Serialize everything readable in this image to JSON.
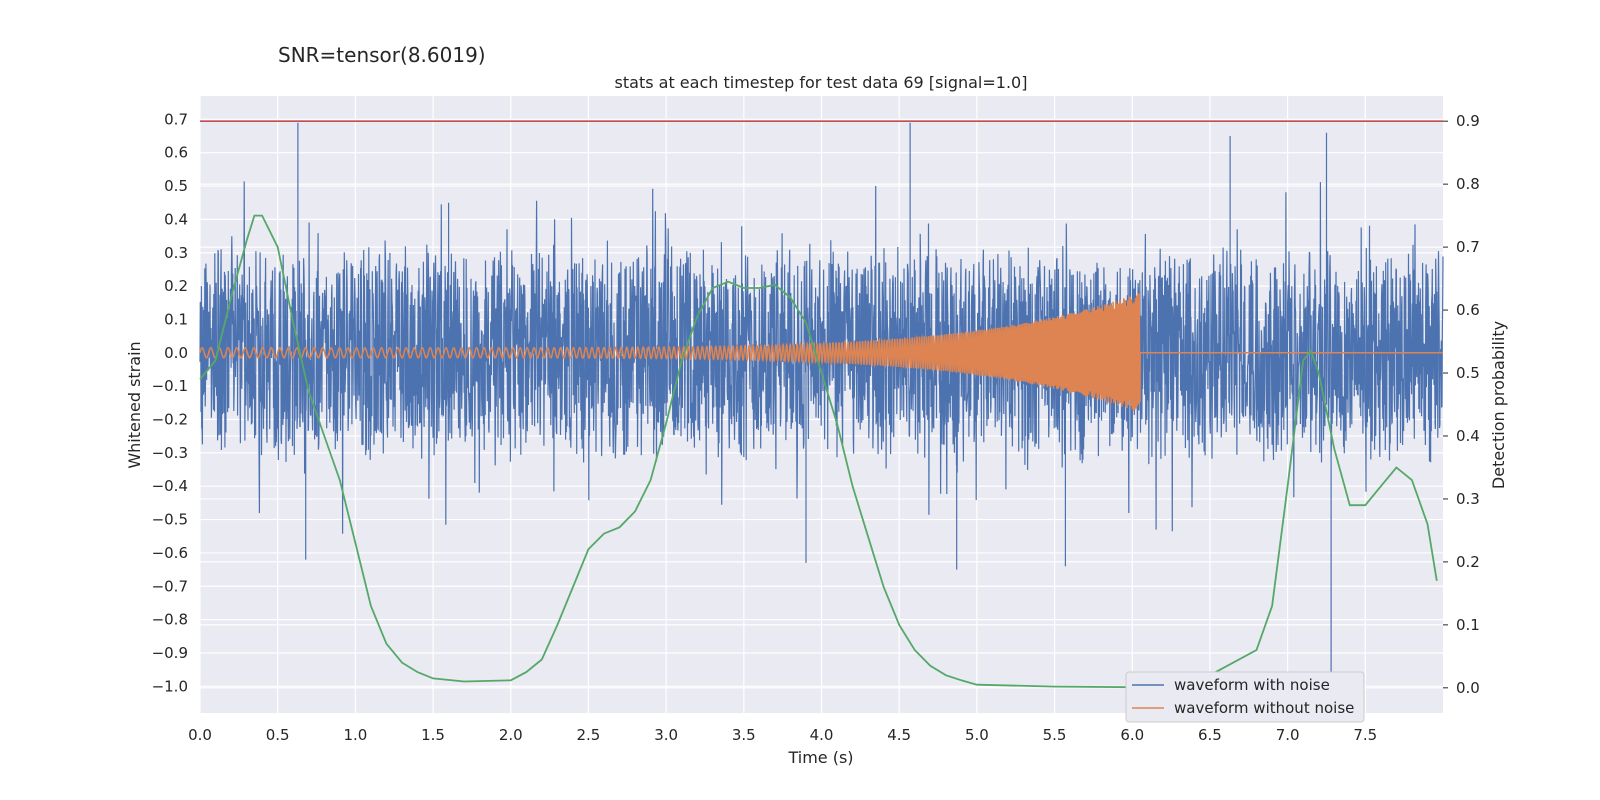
{
  "suptitle": "SNR=tensor(8.6019)",
  "chart_data": {
    "type": "line",
    "title": "stats at each timestep for test data 69 [signal=1.0]",
    "xlabel": "Time (s)",
    "ylabel_left": "Whitened strain",
    "ylabel_right": "Detection probability",
    "xlim": [
      0.0,
      8.0
    ],
    "ylim_left": [
      -1.08,
      0.77
    ],
    "ylim_right": [
      -0.04,
      0.94
    ],
    "x_ticks": [
      "0.0",
      "0.5",
      "1.0",
      "1.5",
      "2.0",
      "2.5",
      "3.0",
      "3.5",
      "4.0",
      "4.5",
      "5.0",
      "5.5",
      "6.0",
      "6.5",
      "7.0",
      "7.5"
    ],
    "y_ticks_left": [
      "0.7",
      "0.6",
      "0.5",
      "0.4",
      "0.3",
      "0.2",
      "0.1",
      "0.0",
      "−0.1",
      "−0.2",
      "−0.3",
      "−0.4",
      "−0.5",
      "−0.6",
      "−0.7",
      "−0.8",
      "−0.9",
      "−1.0"
    ],
    "y_ticks_right": [
      "0.9",
      "0.8",
      "0.7",
      "0.6",
      "0.5",
      "0.4",
      "0.3",
      "0.2",
      "0.1",
      "0.0"
    ],
    "grid": true,
    "legend_position": "bottom-right",
    "threshold_line": {
      "value_right_axis": 0.9,
      "color": "#c44e52"
    },
    "series": [
      {
        "name": "waveform with noise",
        "color": "#4c72b0",
        "axis": "left",
        "description_envelope": {
          "typical_min": -0.3,
          "typical_max": 0.3
        },
        "peaks": [
          [
            0.63,
            0.69
          ],
          [
            4.57,
            0.69
          ],
          [
            7.28,
            -1.0
          ],
          [
            0.68,
            -0.62
          ],
          [
            3.9,
            -0.63
          ],
          [
            4.87,
            -0.65
          ],
          [
            5.57,
            -0.64
          ],
          [
            7.25,
            0.66
          ],
          [
            1.6,
            0.45
          ],
          [
            6.63,
            0.65
          ]
        ]
      },
      {
        "name": "waveform without noise",
        "color": "#dd8452",
        "axis": "left",
        "chirp": {
          "start": 0.0,
          "merger": 6.05,
          "end": 8.0,
          "amp_start": 0.015,
          "amp_peak": 0.18
        }
      },
      {
        "name": "detection probability",
        "color": "#55a868",
        "axis": "right",
        "x": [
          0.0,
          0.1,
          0.2,
          0.3,
          0.35,
          0.4,
          0.5,
          0.6,
          0.7,
          0.8,
          0.9,
          1.0,
          1.1,
          1.2,
          1.3,
          1.4,
          1.5,
          1.7,
          2.0,
          2.1,
          2.2,
          2.3,
          2.4,
          2.5,
          2.6,
          2.7,
          2.8,
          2.9,
          3.0,
          3.1,
          3.2,
          3.3,
          3.4,
          3.5,
          3.6,
          3.7,
          3.8,
          3.9,
          4.0,
          4.1,
          4.2,
          4.3,
          4.4,
          4.5,
          4.6,
          4.7,
          4.8,
          4.9,
          5.0,
          5.5,
          6.0,
          6.5,
          6.8,
          6.9,
          7.0,
          7.1,
          7.15,
          7.2,
          7.3,
          7.4,
          7.5,
          7.6,
          7.7,
          7.8,
          7.9,
          7.96
        ],
        "y": [
          0.49,
          0.52,
          0.62,
          0.71,
          0.75,
          0.75,
          0.7,
          0.58,
          0.47,
          0.4,
          0.33,
          0.23,
          0.13,
          0.07,
          0.04,
          0.025,
          0.015,
          0.01,
          0.012,
          0.025,
          0.045,
          0.1,
          0.16,
          0.22,
          0.245,
          0.255,
          0.28,
          0.33,
          0.42,
          0.52,
          0.59,
          0.635,
          0.645,
          0.635,
          0.635,
          0.64,
          0.62,
          0.58,
          0.5,
          0.42,
          0.32,
          0.24,
          0.16,
          0.1,
          0.06,
          0.035,
          0.02,
          0.012,
          0.005,
          0.002,
          0.001,
          0.02,
          0.06,
          0.13,
          0.32,
          0.52,
          0.535,
          0.5,
          0.38,
          0.29,
          0.29,
          0.32,
          0.35,
          0.33,
          0.26,
          0.17
        ]
      }
    ]
  }
}
